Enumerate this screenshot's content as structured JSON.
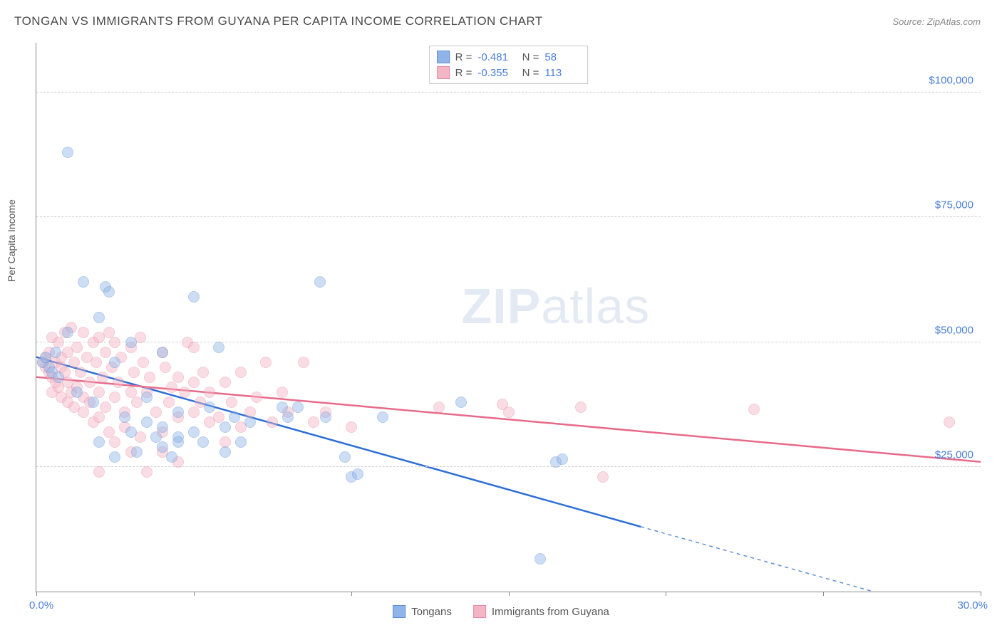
{
  "title": "TONGAN VS IMMIGRANTS FROM GUYANA PER CAPITA INCOME CORRELATION CHART",
  "source": "Source: ZipAtlas.com",
  "watermark_bold": "ZIP",
  "watermark_light": "atlas",
  "y_axis_title": "Per Capita Income",
  "chart": {
    "type": "scatter",
    "xlim": [
      0,
      30
    ],
    "ylim": [
      0,
      110000
    ],
    "x_ticks": [
      0,
      5,
      10,
      15,
      20,
      25,
      30
    ],
    "x_tick_labels_shown": {
      "0": "0.0%",
      "30": "30.0%"
    },
    "y_gridlines": [
      25000,
      50000,
      75000,
      100000
    ],
    "y_tick_labels": {
      "25000": "$25,000",
      "50000": "$50,000",
      "75000": "$75,000",
      "100000": "$100,000"
    },
    "background_color": "#ffffff",
    "grid_color": "#d0d0d0",
    "point_radius": 8,
    "point_opacity": 0.45,
    "series": [
      {
        "name": "Tongans",
        "fill_color": "#8fb4e8",
        "stroke_color": "#5e8fd6",
        "line_color": "#2e6fd6",
        "R": "-0.481",
        "N": "58",
        "trend": {
          "x1": 0,
          "y1": 47000,
          "x2": 19.2,
          "y2": 13000,
          "x2_dash": 30,
          "y2_dash": -6000
        },
        "points": [
          [
            0.2,
            46000
          ],
          [
            0.3,
            47000
          ],
          [
            0.4,
            45000
          ],
          [
            0.5,
            44000
          ],
          [
            0.6,
            48000
          ],
          [
            0.7,
            43000
          ],
          [
            1.0,
            88000
          ],
          [
            1.0,
            52000
          ],
          [
            1.3,
            40000
          ],
          [
            1.5,
            62000
          ],
          [
            1.8,
            38000
          ],
          [
            2.0,
            55000
          ],
          [
            2.0,
            30000
          ],
          [
            2.2,
            61000
          ],
          [
            2.3,
            60000
          ],
          [
            2.5,
            46000
          ],
          [
            2.5,
            27000
          ],
          [
            2.8,
            35000
          ],
          [
            3.0,
            50000
          ],
          [
            3.0,
            32000
          ],
          [
            3.2,
            28000
          ],
          [
            3.5,
            39000
          ],
          [
            3.5,
            34000
          ],
          [
            3.8,
            31000
          ],
          [
            4.0,
            33000
          ],
          [
            4.0,
            29000
          ],
          [
            4.0,
            48000
          ],
          [
            4.3,
            27000
          ],
          [
            4.5,
            36000
          ],
          [
            4.5,
            31000
          ],
          [
            4.5,
            30000
          ],
          [
            5.0,
            59000
          ],
          [
            5.0,
            32000
          ],
          [
            5.3,
            30000
          ],
          [
            5.5,
            37000
          ],
          [
            5.8,
            49000
          ],
          [
            6.0,
            33000
          ],
          [
            6.0,
            28000
          ],
          [
            6.3,
            35000
          ],
          [
            6.5,
            30000
          ],
          [
            6.8,
            34000
          ],
          [
            7.8,
            37000
          ],
          [
            8.0,
            35000
          ],
          [
            8.3,
            37000
          ],
          [
            9.0,
            62000
          ],
          [
            9.2,
            35000
          ],
          [
            9.8,
            27000
          ],
          [
            10.0,
            23000
          ],
          [
            10.2,
            23500
          ],
          [
            11.0,
            35000
          ],
          [
            13.5,
            38000
          ],
          [
            16.0,
            6500
          ],
          [
            16.5,
            26000
          ],
          [
            16.7,
            26500
          ]
        ]
      },
      {
        "name": "Immigrants from Guyana",
        "fill_color": "#f4b6c5",
        "stroke_color": "#e88aa2",
        "line_color": "#e86a8a",
        "R": "-0.355",
        "N": "113",
        "trend": {
          "x1": 0,
          "y1": 43000,
          "x2": 30,
          "y2": 26000
        },
        "points": [
          [
            0.2,
            46000
          ],
          [
            0.3,
            45000
          ],
          [
            0.3,
            47000
          ],
          [
            0.4,
            44000
          ],
          [
            0.4,
            48000
          ],
          [
            0.5,
            51000
          ],
          [
            0.5,
            43000
          ],
          [
            0.5,
            40000
          ],
          [
            0.6,
            46000
          ],
          [
            0.6,
            42000
          ],
          [
            0.7,
            50000
          ],
          [
            0.7,
            41000
          ],
          [
            0.8,
            47000
          ],
          [
            0.8,
            39000
          ],
          [
            0.8,
            45000
          ],
          [
            0.9,
            52000
          ],
          [
            0.9,
            44000
          ],
          [
            1.0,
            48000
          ],
          [
            1.0,
            38000
          ],
          [
            1.0,
            42000
          ],
          [
            1.1,
            53000
          ],
          [
            1.1,
            40000
          ],
          [
            1.2,
            46000
          ],
          [
            1.2,
            37000
          ],
          [
            1.3,
            49000
          ],
          [
            1.3,
            41000
          ],
          [
            1.4,
            44000
          ],
          [
            1.5,
            52000
          ],
          [
            1.5,
            39000
          ],
          [
            1.5,
            36000
          ],
          [
            1.6,
            47000
          ],
          [
            1.7,
            42000
          ],
          [
            1.7,
            38000
          ],
          [
            1.8,
            50000
          ],
          [
            1.8,
            34000
          ],
          [
            1.9,
            46000
          ],
          [
            2.0,
            51000
          ],
          [
            2.0,
            40000
          ],
          [
            2.0,
            35000
          ],
          [
            2.0,
            24000
          ],
          [
            2.1,
            43000
          ],
          [
            2.2,
            48000
          ],
          [
            2.2,
            37000
          ],
          [
            2.3,
            52000
          ],
          [
            2.3,
            32000
          ],
          [
            2.4,
            45000
          ],
          [
            2.5,
            50000
          ],
          [
            2.5,
            39000
          ],
          [
            2.5,
            30000
          ],
          [
            2.6,
            42000
          ],
          [
            2.7,
            47000
          ],
          [
            2.8,
            36000
          ],
          [
            2.8,
            33000
          ],
          [
            3.0,
            49000
          ],
          [
            3.0,
            40000
          ],
          [
            3.0,
            28000
          ],
          [
            3.1,
            44000
          ],
          [
            3.2,
            38000
          ],
          [
            3.3,
            51000
          ],
          [
            3.3,
            31000
          ],
          [
            3.4,
            46000
          ],
          [
            3.5,
            24000
          ],
          [
            3.5,
            40000
          ],
          [
            3.6,
            43000
          ],
          [
            3.8,
            36000
          ],
          [
            4.0,
            48000
          ],
          [
            4.0,
            32000
          ],
          [
            4.0,
            28000
          ],
          [
            4.1,
            45000
          ],
          [
            4.2,
            38000
          ],
          [
            4.3,
            41000
          ],
          [
            4.5,
            26000
          ],
          [
            4.5,
            35000
          ],
          [
            4.5,
            43000
          ],
          [
            4.7,
            40000
          ],
          [
            4.8,
            50000
          ],
          [
            5.0,
            36000
          ],
          [
            5.0,
            42000
          ],
          [
            5.0,
            49000
          ],
          [
            5.2,
            38000
          ],
          [
            5.3,
            44000
          ],
          [
            5.5,
            34000
          ],
          [
            5.5,
            40000
          ],
          [
            5.8,
            35000
          ],
          [
            6.0,
            42000
          ],
          [
            6.0,
            30000
          ],
          [
            6.2,
            38000
          ],
          [
            6.5,
            33000
          ],
          [
            6.5,
            44000
          ],
          [
            6.8,
            36000
          ],
          [
            7.0,
            39000
          ],
          [
            7.3,
            46000
          ],
          [
            7.5,
            34000
          ],
          [
            7.8,
            40000
          ],
          [
            8.0,
            36000
          ],
          [
            8.5,
            46000
          ],
          [
            8.8,
            34000
          ],
          [
            9.2,
            36000
          ],
          [
            10.0,
            33000
          ],
          [
            12.8,
            37000
          ],
          [
            14.8,
            37500
          ],
          [
            15.0,
            36000
          ],
          [
            17.3,
            37000
          ],
          [
            18.0,
            23000
          ],
          [
            22.8,
            36500
          ],
          [
            29.0,
            34000
          ]
        ]
      }
    ]
  },
  "legend_bottom": [
    {
      "label": "Tongans",
      "fill": "#8fb4e8",
      "stroke": "#5e8fd6"
    },
    {
      "label": "Immigrants from Guyana",
      "fill": "#f4b6c5",
      "stroke": "#e88aa2"
    }
  ]
}
